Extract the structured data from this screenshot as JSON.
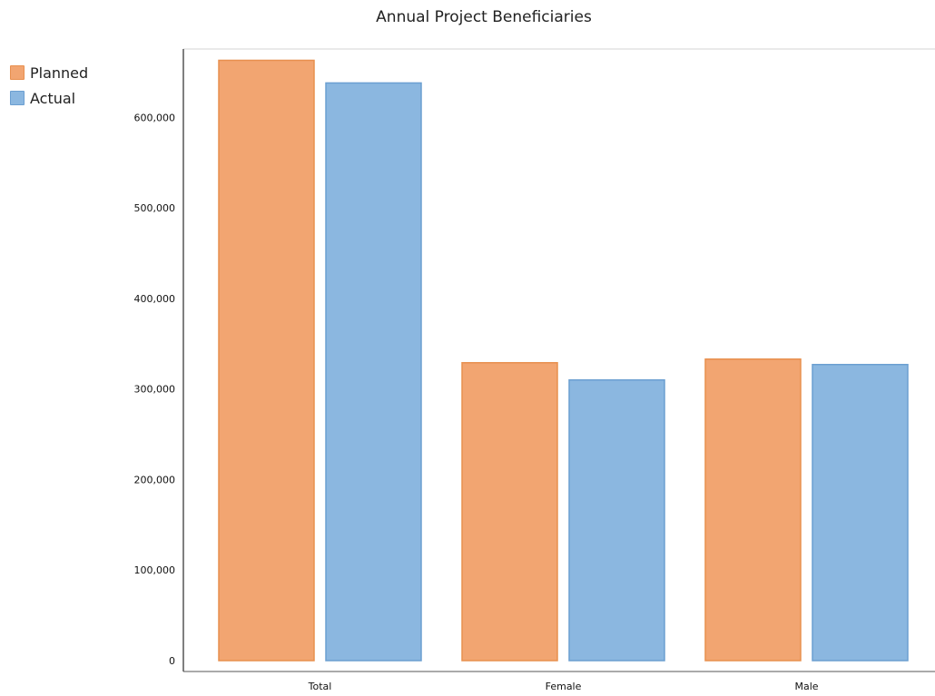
{
  "chart_data": {
    "type": "bar",
    "title": "Annual Project Beneficiaries",
    "xlabel": "",
    "ylabel": "",
    "categories": [
      "Total",
      "Female",
      "Male"
    ],
    "series": [
      {
        "name": "Planned",
        "values": [
          663000,
          329000,
          333000
        ],
        "color": "#f2a571",
        "stroke": "#e8904f"
      },
      {
        "name": "Actual",
        "values": [
          638000,
          310000,
          327000
        ],
        "color": "#8bb7e0",
        "stroke": "#6b9fd1"
      }
    ],
    "ylim": [
      0,
      675000
    ],
    "yticks": [
      0,
      100000,
      200000,
      300000,
      400000,
      500000,
      600000
    ],
    "ytick_labels": [
      "0",
      "100,000",
      "200,000",
      "300,000",
      "400,000",
      "500,000",
      "600,000"
    ],
    "grid": false,
    "legend_position": "top-left"
  }
}
